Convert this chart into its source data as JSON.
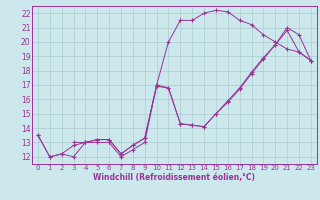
{
  "background_color": "#cce8ec",
  "grid_color": "#aacccc",
  "line_color": "#993399",
  "xlabel": "Windchill (Refroidissement éolien,°C)",
  "xlim": [
    -0.5,
    23.5
  ],
  "ylim": [
    11.5,
    22.5
  ],
  "xticks": [
    0,
    1,
    2,
    3,
    4,
    5,
    6,
    7,
    8,
    9,
    10,
    11,
    12,
    13,
    14,
    15,
    16,
    17,
    18,
    19,
    20,
    21,
    22,
    23
  ],
  "yticks": [
    12,
    13,
    14,
    15,
    16,
    17,
    18,
    19,
    20,
    21,
    22
  ],
  "series": [
    {
      "x": [
        0,
        1,
        2,
        3,
        4,
        5,
        6,
        7,
        8,
        9,
        10,
        11,
        12,
        13,
        14,
        15,
        16,
        17,
        18,
        19,
        20,
        21,
        22,
        23
      ],
      "y": [
        13.5,
        12.0,
        12.2,
        12.0,
        13.0,
        13.0,
        13.0,
        12.0,
        12.5,
        13.0,
        17.0,
        20.0,
        21.5,
        21.5,
        22.0,
        22.2,
        22.1,
        21.5,
        21.2,
        20.5,
        20.0,
        19.5,
        19.3,
        18.7
      ]
    },
    {
      "x": [
        0,
        1,
        2,
        3,
        4,
        5,
        6,
        7,
        8,
        9,
        10,
        11,
        12,
        13,
        14,
        15,
        16,
        17,
        18,
        19,
        20,
        21,
        22,
        23
      ],
      "y": [
        13.5,
        12.0,
        12.2,
        12.8,
        13.0,
        13.2,
        13.2,
        12.2,
        12.8,
        13.3,
        16.9,
        16.8,
        14.3,
        14.2,
        14.1,
        15.0,
        15.8,
        16.7,
        17.8,
        18.8,
        19.8,
        20.8,
        19.3,
        18.7
      ]
    },
    {
      "x": [
        3,
        4,
        5,
        6,
        7,
        8,
        9,
        10,
        11,
        12,
        13,
        14,
        15,
        16,
        17,
        18,
        19,
        20,
        21,
        22,
        23
      ],
      "y": [
        13.0,
        13.0,
        13.2,
        13.2,
        12.2,
        12.8,
        13.3,
        17.0,
        16.8,
        14.3,
        14.2,
        14.1,
        15.0,
        15.9,
        16.8,
        17.9,
        18.9,
        19.8,
        21.0,
        20.5,
        18.7
      ]
    }
  ]
}
